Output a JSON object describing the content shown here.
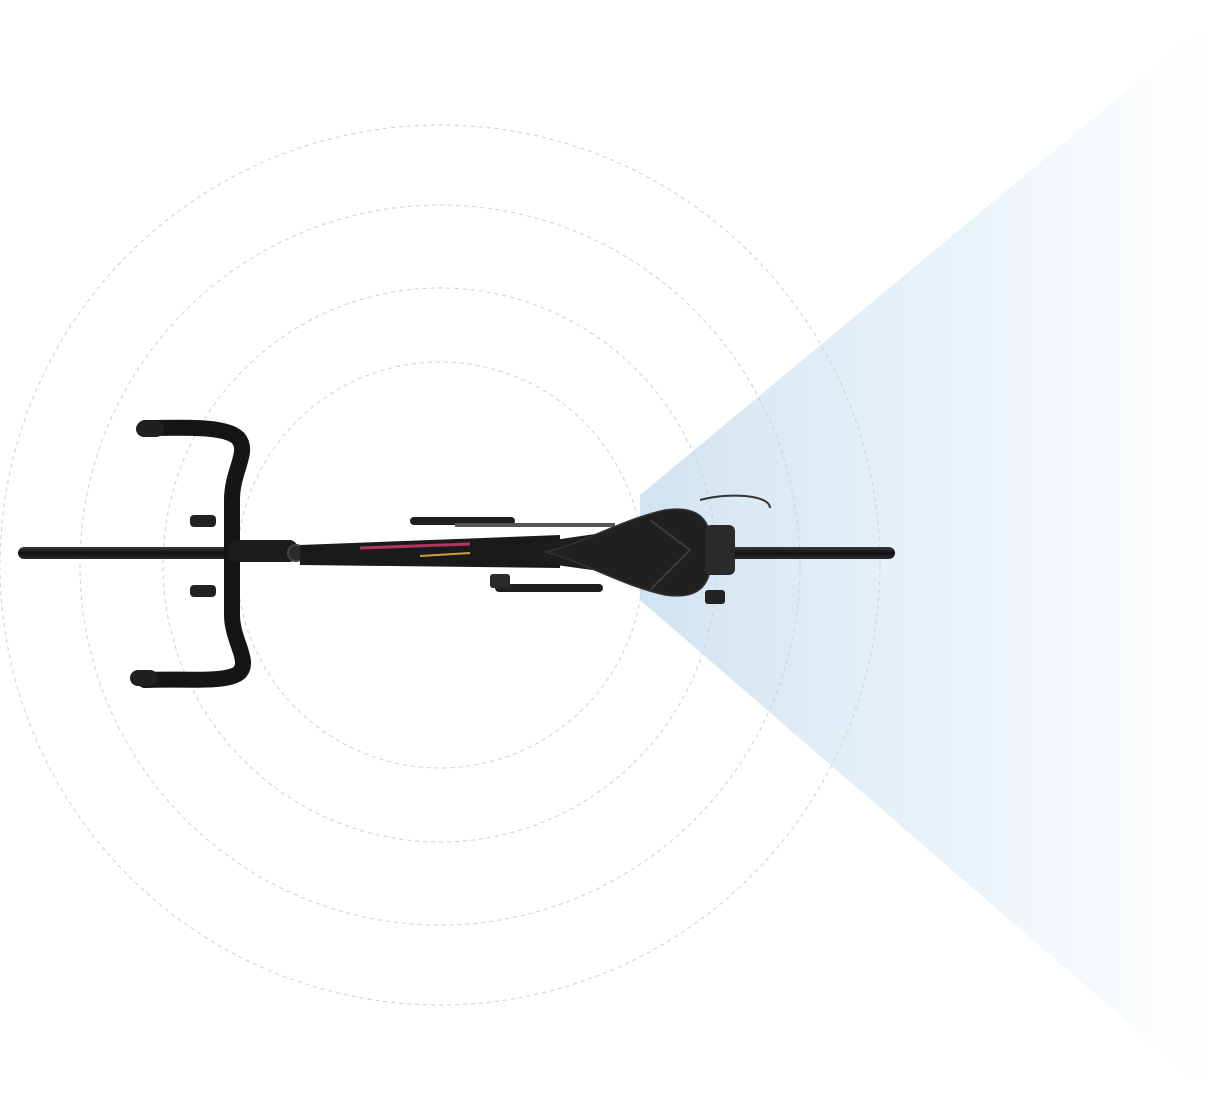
{
  "scene": {
    "subject": "bicycle-top-view",
    "radar_rings": 4,
    "colors": {
      "background": "#ffffff",
      "ring_stroke": "#c9d2d8",
      "beam_light": "#d6e7f3",
      "bike_body": "#1a1a1a",
      "bike_highlight": "#3a3a3a",
      "frame_accent": "#b0375e"
    },
    "icons": {
      "radar": "radar-rings",
      "beam": "rear-radar-beam",
      "bike": "road-bike-top-view"
    }
  }
}
